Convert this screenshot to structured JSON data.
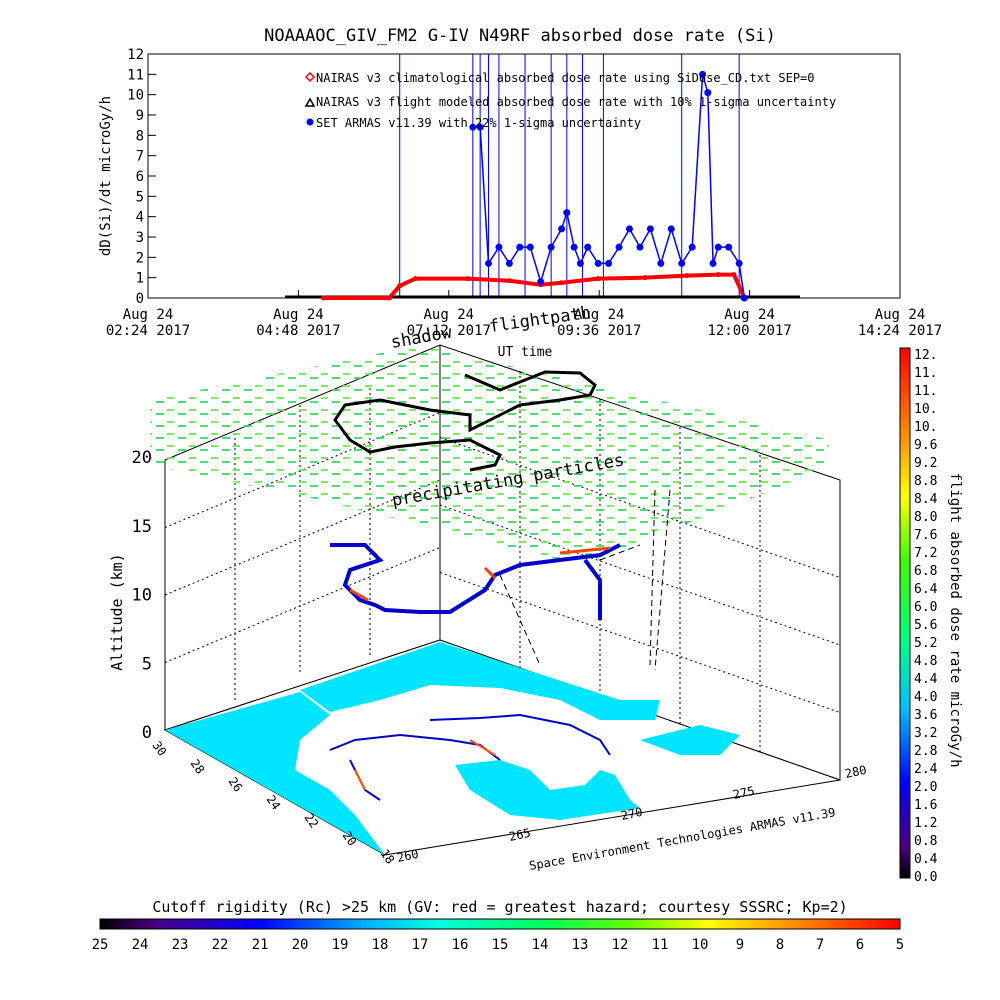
{
  "top_chart": {
    "title": "NOAAAOC_GIV_FM2 G-IV    N49RF  absorbed dose rate (Si)",
    "ylabel": "dD(Si)/dt microGy/h",
    "xlabel": "UT time",
    "legend": [
      "NAIRAS v3 climatological absorbed dose rate using SiDose_CD.txt SEP=0",
      "NAIRAS v3 flight modeled absorbed dose rate with 10% 1-sigma uncertainty",
      "SET ARMAS v11.39 with 22% 1-sigma uncertainty"
    ],
    "x_ticks": [
      {
        "line1": "Aug 24",
        "line2": "02:24 2017"
      },
      {
        "line1": "Aug 24",
        "line2": "04:48 2017"
      },
      {
        "line1": "Aug 24",
        "line2": "07:12 2017"
      },
      {
        "line1": "Aug 24",
        "line2": "09:36 2017"
      },
      {
        "line1": "Aug 24",
        "line2": "12:00 2017"
      },
      {
        "line1": "Aug 24",
        "line2": "14:24 2017"
      }
    ],
    "y_ticks": [
      "0",
      "1",
      "2",
      "3",
      "4",
      "5",
      "6",
      "7",
      "8",
      "9",
      "10",
      "11",
      "12"
    ]
  },
  "chart_data": [
    {
      "type": "line",
      "title": "NOAAAOC_GIV_FM2 G-IV    N49RF  absorbed dose rate (Si)",
      "xlabel": "UT time",
      "ylabel": "dD(Si)/dt microGy/h",
      "xlim": [
        "Aug 24 02:24 2017",
        "Aug 24 14:24 2017"
      ],
      "ylim": [
        0,
        12
      ],
      "colors": {
        "nairas": "#ff0000",
        "armas": "#0000ff",
        "modeled": "#000000"
      },
      "series": [
        {
          "name": "NAIRAS v3 climatological absorbed dose rate using SiDose_CD.txt SEP=0",
          "x": [
            "05:12",
            "06:15",
            "06:25",
            "06:40",
            "07:30",
            "08:10",
            "08:40",
            "09:00",
            "09:35",
            "10:20",
            "11:00",
            "11:30",
            "11:45",
            "11:55"
          ],
          "y": [
            0,
            0,
            0.6,
            0.95,
            0.95,
            0.85,
            0.65,
            0.75,
            0.95,
            1.0,
            1.1,
            1.15,
            1.15,
            0
          ]
        },
        {
          "name": "SET ARMAS v11.39 with 22% 1-sigma uncertainty",
          "x": [
            "07:35",
            "07:42",
            "07:50",
            "08:00",
            "08:10",
            "08:20",
            "08:30",
            "08:40",
            "08:50",
            "09:00",
            "09:05",
            "09:12",
            "09:18",
            "09:25",
            "09:35",
            "09:45",
            "09:55",
            "10:05",
            "10:15",
            "10:25",
            "10:35",
            "10:45",
            "10:55",
            "11:05",
            "11:15",
            "11:20",
            "11:25",
            "11:30",
            "11:40",
            "11:50",
            "11:55"
          ],
          "y": [
            8.4,
            8.4,
            1.7,
            2.5,
            1.7,
            2.5,
            2.5,
            0.8,
            2.5,
            3.4,
            4.2,
            2.5,
            1.7,
            2.5,
            1.7,
            1.7,
            2.5,
            3.4,
            2.5,
            3.4,
            1.7,
            3.4,
            1.7,
            2.5,
            11.0,
            10.1,
            1.7,
            2.5,
            2.5,
            1.7,
            0
          ]
        }
      ]
    },
    {
      "type": "heatmap",
      "xlabel": "",
      "ylabel": "Altitude (km)",
      "z_ticks": [
        "0",
        "5",
        "10",
        "15",
        "20"
      ],
      "lat_ticks": [
        "30",
        "28",
        "26",
        "24",
        "22",
        "20",
        "18"
      ],
      "lon_ticks": [
        "260",
        "265",
        "270",
        "275",
        "280"
      ]
    }
  ],
  "labels3d": {
    "shadow": "shadow",
    "flightpath": "flightpath",
    "precipitating": "precipitating particles",
    "altitude": "Altitude (km)",
    "credit": "Space Environment Technologies ARMAS v11.39"
  },
  "right_colorbar": {
    "label": "flight absorbed dose rate microGy/h",
    "ticks": [
      "12.",
      "11.",
      "11.",
      "10.",
      "10.",
      "9.6",
      "9.2",
      "8.8",
      "8.4",
      "8.0",
      "7.6",
      "7.2",
      "6.8",
      "6.4",
      "6.0",
      "5.6",
      "5.2",
      "4.8",
      "4.4",
      "4.0",
      "3.6",
      "3.2",
      "2.8",
      "2.4",
      "2.0",
      "1.6",
      "1.2",
      "0.8",
      "0.4",
      "0.0"
    ]
  },
  "bottom_colorbar": {
    "label": "Cutoff rigidity (Rc) >25 km (GV: red = greatest hazard; courtesy SSSRC; Kp=2)",
    "ticks": [
      "25",
      "24",
      "23",
      "22",
      "21",
      "20",
      "19",
      "18",
      "17",
      "16",
      "15",
      "14",
      "13",
      "12",
      "11",
      "10",
      "9",
      "8",
      "7",
      "6",
      "5"
    ]
  }
}
